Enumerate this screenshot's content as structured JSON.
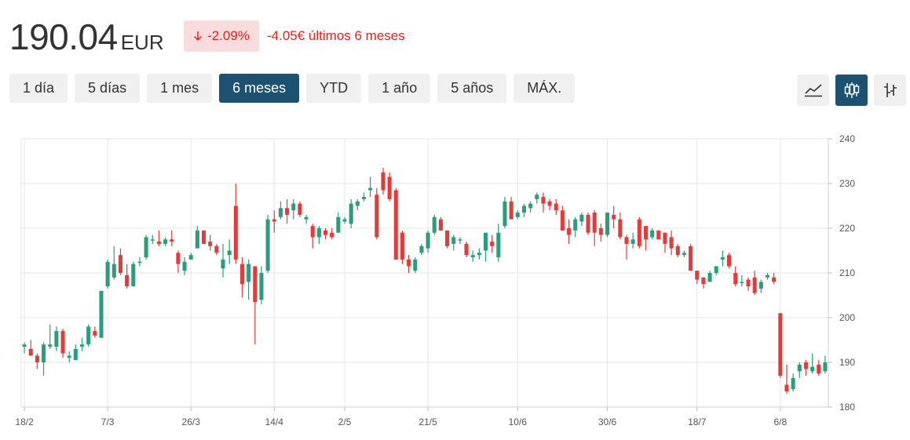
{
  "header": {
    "price": "190.04",
    "currency": "EUR",
    "change_pct": "-2.09%",
    "change_abs": "-4.05€ últimos 6 meses",
    "negative_color": "#e0221f"
  },
  "range_buttons": [
    {
      "label": "1 día",
      "active": false
    },
    {
      "label": "5 días",
      "active": false
    },
    {
      "label": "1 mes",
      "active": false
    },
    {
      "label": "6 meses",
      "active": true
    },
    {
      "label": "YTD",
      "active": false
    },
    {
      "label": "1 año",
      "active": false
    },
    {
      "label": "5 años",
      "active": false
    },
    {
      "label": "MÁX.",
      "active": false
    }
  ],
  "view_buttons": [
    {
      "icon": "line-chart-icon",
      "active": false
    },
    {
      "icon": "candlestick-icon",
      "active": true
    },
    {
      "icon": "ohlc-bars-icon",
      "active": false
    }
  ],
  "chart_data": {
    "type": "candlestick",
    "title": "",
    "xlabel": "",
    "ylabel": "",
    "ylim": [
      180,
      240
    ],
    "y_ticks": [
      180,
      190,
      200,
      210,
      220,
      230,
      240
    ],
    "x_ticks": [
      "18/2",
      "7/3",
      "26/3",
      "14/4",
      "2/5",
      "21/5",
      "10/6",
      "30/6",
      "18/7",
      "6/8"
    ],
    "grid": true,
    "up_color": "#2a9d7f",
    "down_color": "#e23b3b",
    "candles": [
      [
        "18/2",
        193.5,
        194.5,
        192.0,
        194.0
      ],
      [
        "19/2",
        193.0,
        195.0,
        191.5,
        191.5
      ],
      [
        "20/2",
        191.5,
        192.0,
        188.5,
        190.0
      ],
      [
        "21/2",
        190.0,
        194.5,
        187.0,
        194.0
      ],
      [
        "24/2",
        193.5,
        198.5,
        193.0,
        194.0
      ],
      [
        "25/2",
        193.5,
        198.0,
        192.5,
        197.0
      ],
      [
        "26/2",
        197.0,
        197.5,
        191.0,
        192.0
      ],
      [
        "27/2",
        191.0,
        192.5,
        190.0,
        191.5
      ],
      [
        "28/2",
        190.5,
        194.0,
        190.5,
        193.0
      ],
      [
        "3/3",
        193.5,
        195.5,
        192.5,
        194.0
      ],
      [
        "4/3",
        194.0,
        198.5,
        193.5,
        198.0
      ],
      [
        "5/3",
        197.0,
        198.0,
        195.5,
        196.0
      ],
      [
        "6/3",
        195.5,
        206.0,
        195.5,
        206.0
      ],
      [
        "7/3",
        207.0,
        213.0,
        206.5,
        212.5
      ],
      [
        "10/3",
        209.0,
        216.0,
        208.5,
        212.0
      ],
      [
        "11/3",
        214.0,
        215.5,
        209.5,
        210.0
      ],
      [
        "12/3",
        209.5,
        212.0,
        206.5,
        207.0
      ],
      [
        "13/3",
        207.0,
        212.5,
        207.0,
        212.0
      ],
      [
        "14/3",
        212.5,
        213.5,
        211.5,
        212.5
      ],
      [
        "17/3",
        213.5,
        218.5,
        213.0,
        218.0
      ],
      [
        "18/3",
        217.5,
        218.5,
        216.5,
        217.5
      ],
      [
        "19/3",
        217.0,
        219.5,
        216.0,
        216.5
      ],
      [
        "20/3",
        216.5,
        218.0,
        216.0,
        217.5
      ],
      [
        "21/3",
        217.5,
        219.5,
        216.0,
        217.0
      ],
      [
        "24/3",
        214.5,
        215.0,
        210.0,
        212.0
      ],
      [
        "25/3",
        210.5,
        213.5,
        209.5,
        212.5
      ],
      [
        "26/3",
        213.0,
        214.5,
        213.0,
        214.0
      ],
      [
        "27/3",
        215.5,
        220.5,
        215.5,
        219.5
      ],
      [
        "28/3",
        219.5,
        219.5,
        216.5,
        216.5
      ],
      [
        "31/3",
        217.0,
        218.5,
        215.0,
        216.0
      ],
      [
        "1/4",
        216.0,
        216.5,
        214.0,
        214.5
      ],
      [
        "2/4",
        211.0,
        216.5,
        209.0,
        213.0
      ],
      [
        "3/4",
        214.0,
        217.5,
        212.0,
        215.0
      ],
      [
        "4/4",
        225.0,
        230.0,
        212.0,
        213.0
      ],
      [
        "7/4",
        212.0,
        213.5,
        204.5,
        207.5
      ],
      [
        "8/4",
        208.0,
        213.0,
        204.0,
        212.0
      ],
      [
        "9/4",
        211.5,
        211.5,
        194.0,
        203.5
      ],
      [
        "10/4",
        204.0,
        211.5,
        203.0,
        210.0
      ],
      [
        "11/4",
        210.5,
        223.0,
        210.0,
        222.0
      ],
      [
        "14/4",
        222.0,
        224.0,
        219.0,
        221.5
      ],
      [
        "15/4",
        222.5,
        226.0,
        222.0,
        224.5
      ],
      [
        "16/4",
        224.5,
        226.5,
        221.0,
        223.0
      ],
      [
        "17/4",
        224.0,
        226.5,
        222.0,
        225.5
      ],
      [
        "22/4",
        225.5,
        226.0,
        222.5,
        223.0
      ],
      [
        "23/4",
        222.0,
        223.0,
        221.0,
        222.5
      ],
      [
        "24/4",
        220.5,
        221.0,
        215.5,
        218.0
      ],
      [
        "25/4",
        218.0,
        220.5,
        216.5,
        220.0
      ],
      [
        "28/4",
        219.5,
        220.0,
        217.5,
        218.5
      ],
      [
        "29/4",
        219.0,
        220.0,
        217.5,
        218.0
      ],
      [
        "30/4",
        219.0,
        223.5,
        219.0,
        222.5
      ],
      [
        "2/5",
        221.5,
        222.5,
        221.0,
        222.0
      ],
      [
        "5/5",
        221.0,
        226.5,
        220.0,
        225.5
      ],
      [
        "6/5",
        225.0,
        226.5,
        224.0,
        226.0
      ],
      [
        "7/5",
        226.5,
        228.0,
        226.0,
        227.0
      ],
      [
        "8/5",
        228.5,
        231.5,
        227.0,
        229.0
      ],
      [
        "9/5",
        227.5,
        229.0,
        217.5,
        218.0
      ],
      [
        "12/5",
        232.5,
        233.5,
        227.5,
        228.5
      ],
      [
        "13/5",
        231.5,
        232.5,
        226.0,
        226.5
      ],
      [
        "14/5",
        228.5,
        229.0,
        213.0,
        213.0
      ],
      [
        "15/5",
        219.0,
        219.5,
        212.0,
        213.0
      ],
      [
        "16/5",
        213.0,
        214.0,
        210.0,
        211.5
      ],
      [
        "19/5",
        210.5,
        213.5,
        210.0,
        213.0
      ],
      [
        "20/5",
        214.5,
        216.5,
        214.0,
        216.0
      ],
      [
        "21/5",
        215.5,
        219.5,
        214.5,
        219.0
      ],
      [
        "22/5",
        219.0,
        223.0,
        218.5,
        222.5
      ],
      [
        "23/5",
        222.0,
        222.5,
        219.5,
        219.5
      ],
      [
        "26/5",
        219.5,
        219.5,
        215.5,
        216.0
      ],
      [
        "27/5",
        216.5,
        218.5,
        215.0,
        218.0
      ],
      [
        "28/5",
        217.5,
        218.0,
        216.5,
        217.5
      ],
      [
        "29/5",
        216.5,
        217.0,
        213.5,
        214.0
      ],
      [
        "30/5",
        213.5,
        215.0,
        212.5,
        214.0
      ],
      [
        "2/6",
        214.0,
        215.5,
        213.0,
        214.5
      ],
      [
        "3/6",
        215.0,
        219.0,
        212.5,
        219.0
      ],
      [
        "4/6",
        217.0,
        218.5,
        214.5,
        216.0
      ],
      [
        "5/6",
        213.5,
        221.0,
        212.5,
        219.0
      ],
      [
        "6/6",
        220.5,
        227.0,
        220.0,
        226.0
      ],
      [
        "9/6",
        226.0,
        227.0,
        222.0,
        222.0
      ],
      [
        "10/6",
        222.5,
        224.0,
        222.0,
        223.5
      ],
      [
        "11/6",
        223.5,
        225.5,
        222.5,
        225.0
      ],
      [
        "12/6",
        224.5,
        226.0,
        223.5,
        225.5
      ],
      [
        "13/6",
        226.5,
        228.0,
        225.5,
        227.5
      ],
      [
        "16/6",
        227.0,
        228.0,
        223.5,
        225.5
      ],
      [
        "17/6",
        226.0,
        226.5,
        224.0,
        225.0
      ],
      [
        "18/6",
        225.5,
        226.5,
        223.0,
        224.0
      ],
      [
        "19/6",
        224.0,
        225.0,
        219.5,
        219.5
      ],
      [
        "20/6",
        220.0,
        222.0,
        216.5,
        218.5
      ],
      [
        "23/6",
        219.5,
        222.5,
        218.0,
        222.0
      ],
      [
        "24/6",
        221.5,
        223.5,
        220.5,
        223.0
      ],
      [
        "25/6",
        223.0,
        223.5,
        218.5,
        219.0
      ],
      [
        "26/6",
        223.5,
        224.0,
        216.0,
        219.0
      ],
      [
        "27/6",
        220.0,
        221.0,
        217.0,
        218.5
      ],
      [
        "30/6",
        218.5,
        223.5,
        218.0,
        223.5
      ],
      [
        "1/7",
        223.0,
        225.0,
        220.0,
        222.0
      ],
      [
        "2/7",
        222.0,
        223.5,
        217.5,
        218.0
      ],
      [
        "3/7",
        218.0,
        218.5,
        213.0,
        216.5
      ],
      [
        "4/7",
        216.5,
        219.0,
        215.5,
        217.5
      ],
      [
        "7/7",
        222.0,
        222.5,
        215.5,
        216.0
      ],
      [
        "8/7",
        220.5,
        220.5,
        215.0,
        217.5
      ],
      [
        "9/7",
        218.0,
        220.0,
        217.5,
        219.5
      ],
      [
        "10/7",
        219.5,
        219.5,
        217.5,
        217.5
      ],
      [
        "11/7",
        219.0,
        219.0,
        214.5,
        216.5
      ],
      [
        "14/7",
        218.0,
        219.5,
        214.0,
        215.5
      ],
      [
        "15/7",
        216.0,
        216.5,
        213.5,
        214.0
      ],
      [
        "16/7",
        214.0,
        215.0,
        213.5,
        214.5
      ],
      [
        "17/7",
        216.0,
        216.5,
        210.5,
        210.5
      ],
      [
        "18/7",
        210.5,
        210.5,
        207.5,
        208.5
      ],
      [
        "21/7",
        209.0,
        209.0,
        206.5,
        207.5
      ],
      [
        "22/7",
        208.0,
        210.5,
        208.0,
        210.0
      ],
      [
        "23/7",
        210.0,
        211.5,
        209.5,
        211.5
      ],
      [
        "24/7",
        213.0,
        215.0,
        211.5,
        213.5
      ],
      [
        "25/7",
        214.0,
        214.5,
        211.0,
        211.5
      ],
      [
        "28/7",
        210.0,
        211.5,
        207.0,
        207.5
      ],
      [
        "29/7",
        208.0,
        209.5,
        207.0,
        208.0
      ],
      [
        "30/7",
        208.5,
        209.0,
        206.0,
        207.0
      ],
      [
        "31/7",
        209.0,
        210.5,
        205.0,
        205.5
      ],
      [
        "1/8",
        206.5,
        208.5,
        205.5,
        208.0
      ],
      [
        "4/8",
        209.0,
        210.0,
        208.5,
        209.5
      ],
      [
        "5/8",
        209.0,
        210.0,
        207.5,
        208.0
      ],
      [
        "6/8",
        201.0,
        201.0,
        186.5,
        187.0
      ],
      [
        "7/8",
        185.0,
        189.5,
        183.0,
        183.5
      ],
      [
        "8/8",
        184.0,
        187.5,
        183.5,
        186.5
      ],
      [
        "11/8",
        188.0,
        190.0,
        186.5,
        189.5
      ],
      [
        "12/8",
        190.0,
        190.5,
        187.0,
        188.5
      ],
      [
        "13/8",
        188.0,
        192.0,
        187.5,
        189.0
      ],
      [
        "14/8",
        189.5,
        190.5,
        187.0,
        187.5
      ],
      [
        "15/8",
        188.0,
        191.5,
        187.5,
        190.0
      ]
    ]
  }
}
